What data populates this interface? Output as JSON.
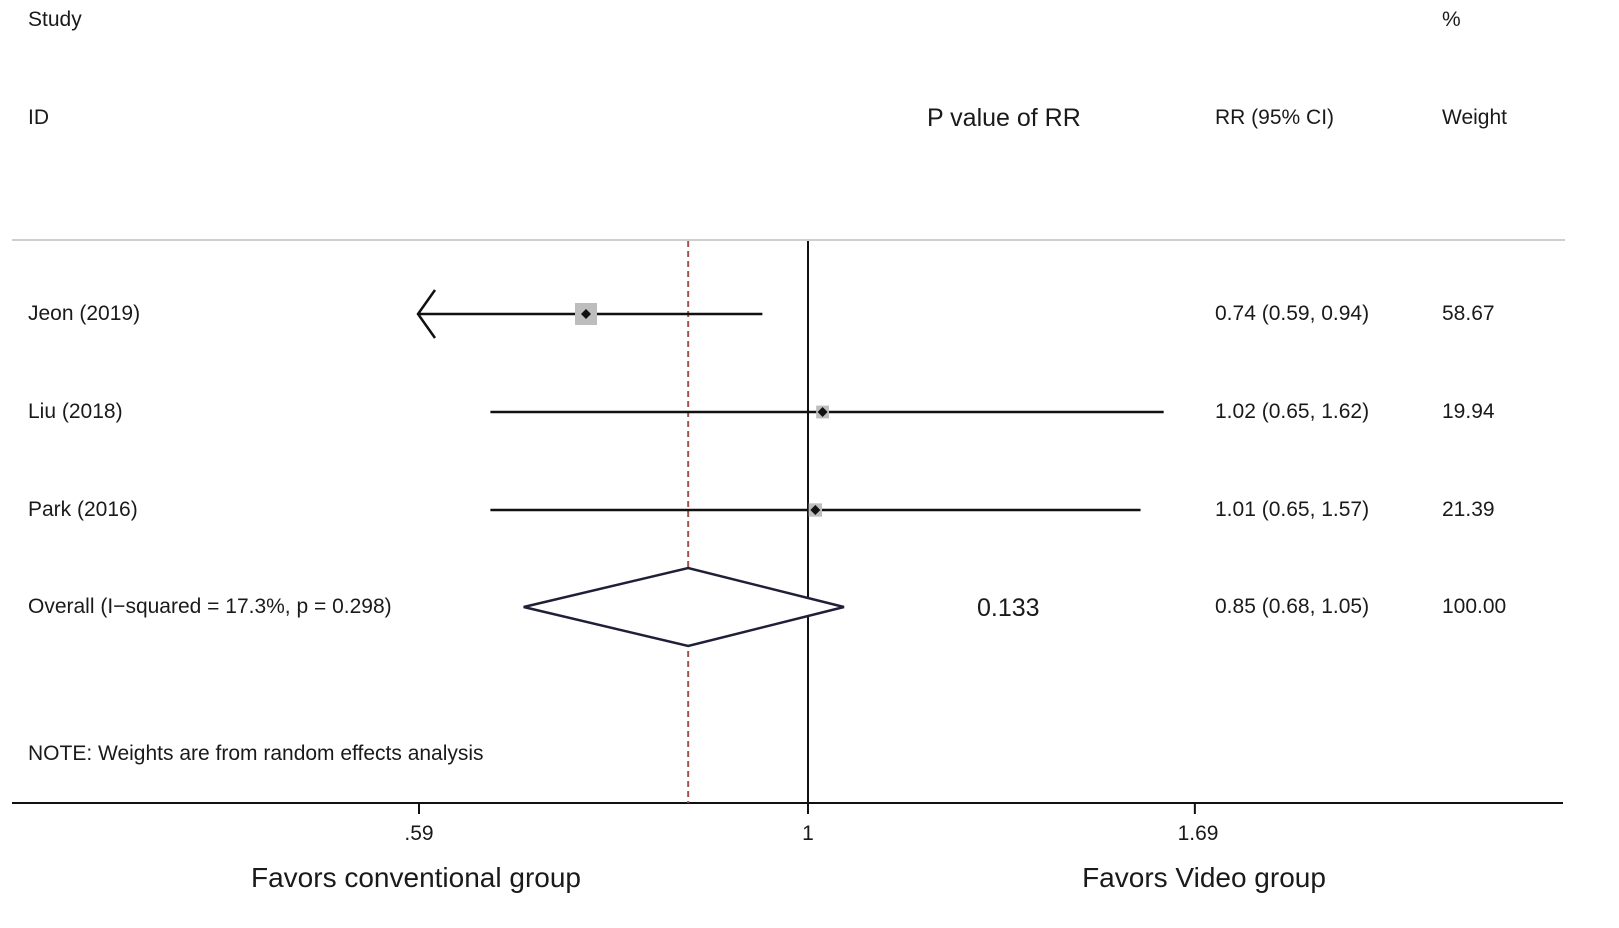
{
  "headers": {
    "study": "Study",
    "id": "ID",
    "pvalue": "P value of RR",
    "rr": "RR (95% CI)",
    "pct": "%",
    "weight": "Weight"
  },
  "chart_data": {
    "type": "forest",
    "scale": "log",
    "null_value": 1,
    "ticks": [
      0.59,
      1,
      1.69
    ],
    "tick_labels": [
      ".59",
      "1",
      "1.69"
    ],
    "favors_left": "Favors conventional group",
    "favors_right": "Favors Video group",
    "studies": [
      {
        "label": "Jeon (2019)",
        "rr": 0.74,
        "lo": 0.59,
        "hi": 0.94,
        "rr_text": "0.74 (0.59, 0.94)",
        "weight": 58.67,
        "weight_text": "58.67",
        "clipped_low": true
      },
      {
        "label": "Liu (2018)",
        "rr": 1.02,
        "lo": 0.65,
        "hi": 1.62,
        "rr_text": "1.02 (0.65, 1.62)",
        "weight": 19.94,
        "weight_text": "19.94"
      },
      {
        "label": "Park (2016)",
        "rr": 1.01,
        "lo": 0.65,
        "hi": 1.57,
        "rr_text": "1.01 (0.65, 1.57)",
        "weight": 21.39,
        "weight_text": "21.39"
      }
    ],
    "overall": {
      "label": "Overall  (I−squared = 17.3%, p = 0.298)",
      "rr": 0.85,
      "lo": 0.68,
      "hi": 1.05,
      "rr_text": "0.85 (0.68, 1.05)",
      "weight_text": "100.00",
      "p_value_text": "0.133"
    },
    "note": "NOTE: Weights are from random effects analysis",
    "colors": {
      "dashed_line": "#a0524d",
      "box": "#bdbdbd",
      "diamond": "#1f1f3a",
      "axis": "#111111"
    }
  }
}
